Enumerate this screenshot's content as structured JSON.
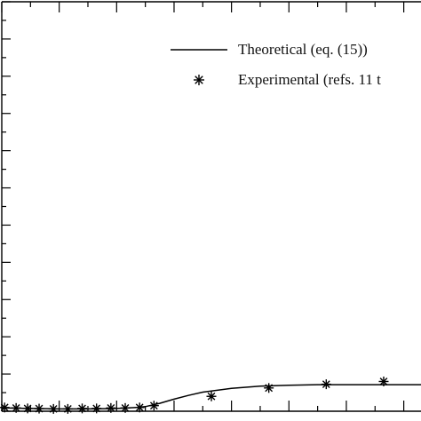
{
  "chart_data": {
    "type": "line",
    "title": "",
    "xlabel": "",
    "ylabel": "",
    "xlim": [
      0,
      14.6
    ],
    "ylim": [
      0,
      44
    ],
    "grid": false,
    "legend_placement": "top-right",
    "series": [
      {
        "name": "Theoretical (eq. (15))",
        "style": "solid-line",
        "color": "#000000",
        "x": [
          0,
          1,
          2,
          3,
          4,
          4.7,
          5,
          5.5,
          6,
          6.5,
          7,
          8,
          9,
          10,
          11,
          12,
          13,
          14,
          14.6
        ],
        "y": [
          0.35,
          0.3,
          0.25,
          0.25,
          0.3,
          0.4,
          0.5,
          0.85,
          1.3,
          1.7,
          2.05,
          2.45,
          2.7,
          2.8,
          2.85,
          2.85,
          2.85,
          2.85,
          2.85
        ]
      },
      {
        "name": "Experimental (refs. 11 t",
        "style": "asterisk-marker",
        "color": "#000000",
        "x": [
          0.1,
          0.5,
          0.9,
          1.3,
          1.8,
          2.3,
          2.8,
          3.3,
          3.8,
          4.3,
          4.8,
          5.3,
          7.3,
          9.3,
          11.3,
          13.3
        ],
        "y": [
          0.4,
          0.35,
          0.3,
          0.28,
          0.25,
          0.25,
          0.3,
          0.3,
          0.35,
          0.35,
          0.4,
          0.6,
          1.6,
          2.5,
          2.9,
          3.2
        ]
      }
    ]
  }
}
